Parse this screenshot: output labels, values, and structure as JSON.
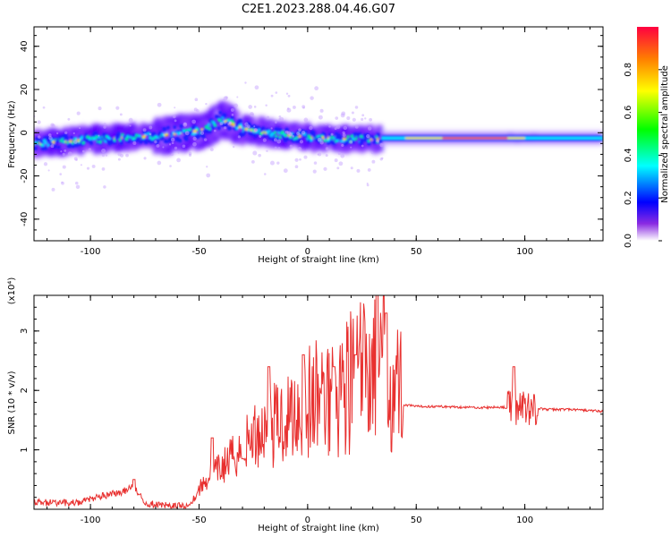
{
  "title": "C2E1.2023.288.04.46.G07",
  "chart_data": [
    {
      "type": "heatmap",
      "xlabel": "Height of straight line (km)",
      "ylabel": "Frequency (Hz)",
      "xlim": [
        -126,
        136
      ],
      "ylim": [
        -50,
        49
      ],
      "xticks": [
        -100,
        -50,
        0,
        50,
        100
      ],
      "yticks": [
        -40,
        -20,
        0,
        20,
        40
      ],
      "colorbar": {
        "label": "Normalized spectral amplitude",
        "range": [
          0,
          1
        ],
        "ticks": [
          "0.0",
          "0.2",
          "0.4",
          "0.6",
          "0.8"
        ]
      },
      "ridge": [
        {
          "x": -126,
          "f": -5.0
        },
        {
          "x": -110,
          "f": -4.0
        },
        {
          "x": -100,
          "f": -3.0
        },
        {
          "x": -90,
          "f": -2.5
        },
        {
          "x": -80,
          "f": -2.0
        },
        {
          "x": -70,
          "f": -1.5
        },
        {
          "x": -60,
          "f": -0.5
        },
        {
          "x": -50,
          "f": 1.0
        },
        {
          "x": -45,
          "f": 3.0
        },
        {
          "x": -40,
          "f": 6.0
        },
        {
          "x": -35,
          "f": 4.0
        },
        {
          "x": -30,
          "f": 2.0
        },
        {
          "x": -20,
          "f": 0.0
        },
        {
          "x": -10,
          "f": -1.0
        },
        {
          "x": 0,
          "f": -2.0
        },
        {
          "x": 10,
          "f": -2.5
        },
        {
          "x": 20,
          "f": -3.0
        },
        {
          "x": 30,
          "f": -3.0
        },
        {
          "x": 35,
          "f": -3.5
        },
        {
          "x": 50,
          "f": -3.0
        },
        {
          "x": 60,
          "f": -2.5
        },
        {
          "x": 80,
          "f": -2.5
        },
        {
          "x": 100,
          "f": -2.0
        },
        {
          "x": 120,
          "f": -1.0
        },
        {
          "x": 136,
          "f": -1.0
        }
      ]
    },
    {
      "type": "line",
      "xlabel": "Height of straight line (km)",
      "ylabel": "SNR (10 * v/v)",
      "yscale_label": "(x10⁴)",
      "xlim": [
        -126,
        136
      ],
      "ylim": [
        0,
        3.6
      ],
      "xticks": [
        -100,
        -50,
        0,
        50,
        100
      ],
      "yticks": [
        1,
        2,
        3
      ],
      "color": "#e8302f",
      "series": [
        {
          "x": [
            -126,
            -115,
            -105,
            -95,
            -85,
            -80,
            -75,
            -65,
            -60,
            -55,
            -52,
            -50,
            -45,
            -40,
            -35,
            -30,
            -25,
            -20,
            -15,
            -10,
            -5,
            0,
            5,
            10,
            15,
            20,
            25,
            30,
            35,
            40,
            42,
            44,
            46,
            50,
            60,
            70,
            80,
            90,
            92,
            95,
            98,
            100,
            103,
            105,
            110,
            120,
            130,
            136
          ],
          "y": [
            0.12,
            0.1,
            0.12,
            0.22,
            0.3,
            0.38,
            0.1,
            0.06,
            0.05,
            0.06,
            0.18,
            0.3,
            0.5,
            0.6,
            0.75,
            0.9,
            1.05,
            1.15,
            1.2,
            1.3,
            1.4,
            1.45,
            1.55,
            1.6,
            1.7,
            1.8,
            1.9,
            2.0,
            2.1,
            1.75,
            1.7,
            1.75,
            1.75,
            1.73,
            1.73,
            1.72,
            1.71,
            1.72,
            1.7,
            1.72,
            1.7,
            1.75,
            1.7,
            1.7,
            1.68,
            1.68,
            1.66,
            1.65
          ]
        }
      ],
      "peaks": [
        {
          "x": -80,
          "y": 0.5
        },
        {
          "x": -44,
          "y": 1.2
        },
        {
          "x": -30,
          "y": 0.85
        },
        {
          "x": -18,
          "y": 2.4
        },
        {
          "x": -2,
          "y": 2.6
        },
        {
          "x": 12,
          "y": 2.4
        },
        {
          "x": 22,
          "y": 2.6
        },
        {
          "x": 32,
          "y": 3.6
        },
        {
          "x": 36,
          "y": 3.3
        },
        {
          "x": 95,
          "y": 2.4
        }
      ]
    }
  ]
}
